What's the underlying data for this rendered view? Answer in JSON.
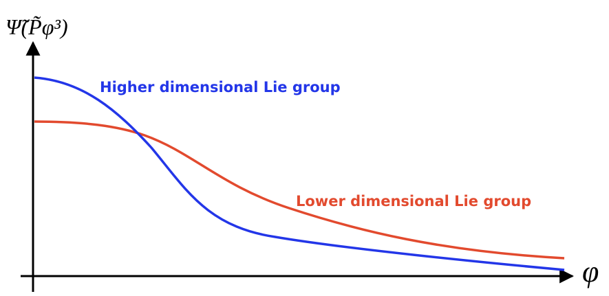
{
  "y_axis_label": "Ψ̃(P̃φ³)",
  "x_axis_label": "φ",
  "curves": [
    {
      "label": "Higher dimensional Lie group",
      "color": "#2336e8"
    },
    {
      "label": "Lower dimensional Lie group",
      "color": "#e24a2e"
    }
  ]
}
